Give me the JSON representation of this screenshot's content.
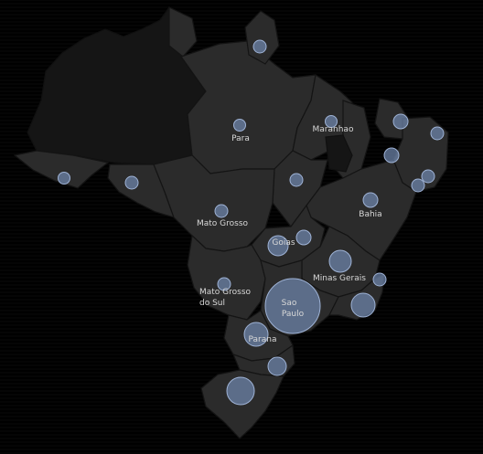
{
  "map": {
    "colors": {
      "land": "#2b2b2b",
      "land_dark": "#151515",
      "border": "#141414",
      "bubble": "#6f86ad",
      "label": "#d8d8d8"
    },
    "labels": {
      "para": "Para",
      "maranhao": "Maranhao",
      "mato_grosso": "Mato Grosso",
      "bahia": "Bahia",
      "goias": "Goias",
      "minas_gerais": "Minas Gerais",
      "mato_grosso_do_sul_1": "Mato Grosso",
      "mato_grosso_do_sul_2": "do Sul",
      "sao_paulo_1": "Sao",
      "sao_paulo_2": "Paulo",
      "parana": "Parana"
    }
  }
}
